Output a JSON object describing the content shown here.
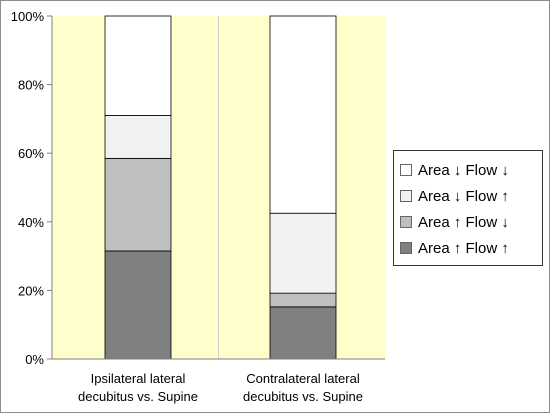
{
  "chart_data": {
    "type": "bar",
    "stacked": true,
    "percent": true,
    "categories": [
      [
        "Ipsilateral lateral",
        "decubitus vs. Supine"
      ],
      [
        "Contralateral lateral",
        "decubitus vs. Supine"
      ]
    ],
    "series": [
      {
        "name": "Area ↑ Flow ↑",
        "values": [
          31.5,
          15.2
        ],
        "color": "#808080"
      },
      {
        "name": "Area ↑ Flow ↓",
        "values": [
          27.0,
          4.0
        ],
        "color": "#bfbfbf"
      },
      {
        "name": "Area ↓  Flow ↑",
        "values": [
          12.5,
          23.3
        ],
        "color": "#f2f2f2"
      },
      {
        "name": "Area ↓  Flow ↓",
        "values": [
          29.0,
          57.5
        ],
        "color": "#ffffff"
      }
    ],
    "ylim": [
      0,
      100
    ],
    "yticks": [
      "0%",
      "20%",
      "40%",
      "60%",
      "80%",
      "100%"
    ],
    "plot_background": "#ffffcc",
    "legend_position": "right",
    "title": "",
    "xlabel": "",
    "ylabel": ""
  }
}
